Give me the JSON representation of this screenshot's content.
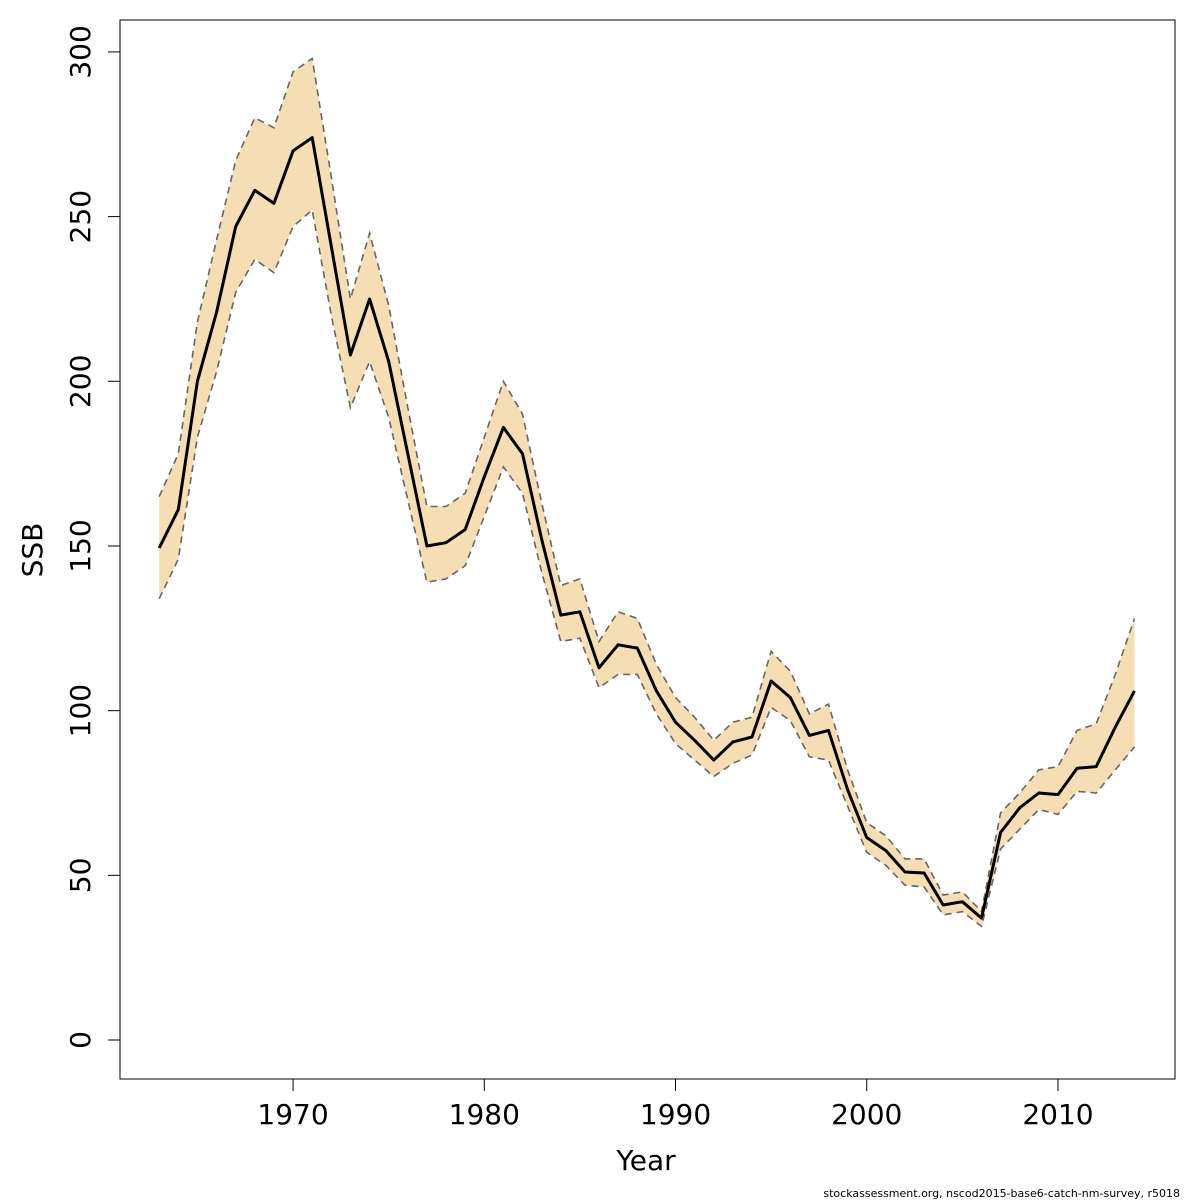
{
  "chart_data": {
    "type": "line",
    "xlabel": "Year",
    "ylabel": "SSB",
    "footer": "stockassessment.org, nscod2015-base6-catch-nm-survey, r5018",
    "x": [
      1963,
      1964,
      1965,
      1966,
      1967,
      1968,
      1969,
      1970,
      1971,
      1972,
      1973,
      1974,
      1975,
      1976,
      1977,
      1978,
      1979,
      1980,
      1981,
      1982,
      1983,
      1984,
      1985,
      1986,
      1987,
      1988,
      1989,
      1990,
      1991,
      1992,
      1993,
      1994,
      1995,
      1996,
      1997,
      1998,
      1999,
      2000,
      2001,
      2002,
      2003,
      2004,
      2005,
      2006,
      2007,
      2008,
      2009,
      2010,
      2011,
      2012,
      2013,
      2014
    ],
    "series": [
      {
        "color": "#000000",
        "values": [
          149.4,
          161,
          200,
          221,
          247,
          258,
          254,
          270,
          274,
          241,
          208,
          225,
          206,
          178,
          150,
          151,
          155,
          171,
          186,
          178,
          152,
          129,
          130,
          113,
          120,
          119,
          106,
          96.5,
          91,
          85,
          90.5,
          92,
          109,
          104,
          92.5,
          94,
          76,
          61.5,
          57.5,
          51,
          50.7,
          41,
          42,
          37,
          63,
          70.5,
          75,
          74.5,
          82.5,
          83,
          95,
          106
        ]
      }
    ],
    "band": {
      "color": "#f5deb3",
      "edge_color": "#666666",
      "upper": [
        165,
        178,
        218,
        243,
        267,
        280,
        277,
        294,
        298,
        262,
        225,
        245,
        223,
        192,
        162,
        162,
        166,
        183,
        200,
        190,
        163,
        138,
        140,
        121,
        130,
        128,
        114,
        104,
        98,
        91,
        96.5,
        98,
        118,
        112,
        99,
        102,
        82,
        66,
        62,
        55,
        55,
        44,
        45,
        39,
        69,
        75,
        82,
        83,
        94,
        96,
        111,
        128
      ],
      "lower": [
        134,
        146,
        183,
        203,
        227,
        237,
        233,
        247,
        252,
        220,
        192,
        206,
        189,
        164,
        139,
        140,
        144,
        159,
        174,
        166,
        142,
        121,
        122,
        107,
        111,
        111,
        99,
        90,
        85,
        80,
        84,
        86.5,
        101,
        97,
        86,
        85,
        71,
        57,
        53,
        47,
        46.5,
        38,
        39,
        34.5,
        58,
        64,
        70,
        68.5,
        75.5,
        75,
        82,
        89
      ]
    },
    "xlim": [
      1960.95,
      2016.12
    ],
    "ylim": [
      -11.84,
      309.7
    ],
    "xticks": [
      1970,
      1980,
      1990,
      2000,
      2010
    ],
    "yticks": [
      0,
      50,
      100,
      150,
      200,
      250,
      300
    ],
    "grid": false
  }
}
